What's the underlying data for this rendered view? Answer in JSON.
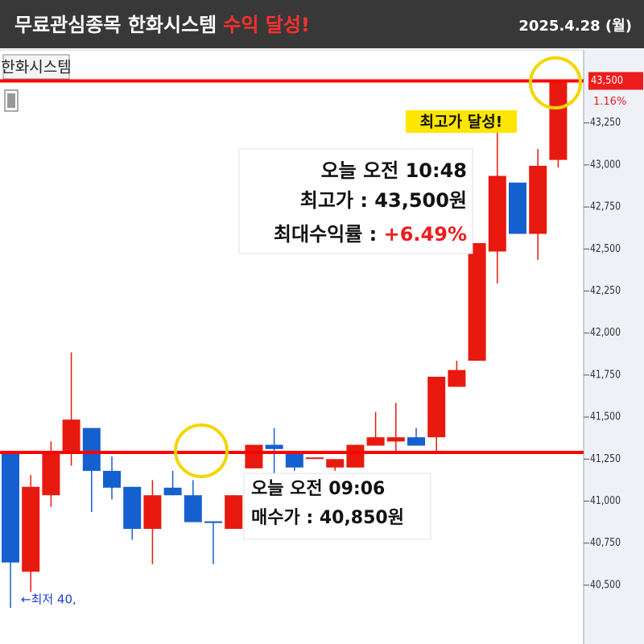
{
  "header": {
    "title": "무료관심종목 한화시스템",
    "highlight": "수익 달성!",
    "date": "2025.4.28 (월)"
  },
  "chart_data": {
    "type": "candlestick",
    "title": "한화시스템",
    "open": [
      41285,
      40580,
      41035,
      41285,
      41435,
      41180,
      41085,
      40835,
      41080,
      41035,
      40880,
      40835,
      41195,
      41335,
      41285,
      41260,
      41200,
      41200,
      41330,
      41355,
      41380,
      41380,
      41680,
      41835,
      42485,
      42895,
      42590,
      43030
    ],
    "high": [
      41285,
      41155,
      41355,
      41885,
      41435,
      41265,
      41085,
      41125,
      41180,
      41125,
      40880,
      41035,
      41335,
      41435,
      41285,
      41260,
      41250,
      41335,
      41530,
      41585,
      41435,
      41740,
      41835,
      42535,
      43215,
      42895,
      43095,
      43500
    ],
    "low": [
      40365,
      40460,
      40965,
      41210,
      40935,
      41010,
      40770,
      40625,
      41035,
      40875,
      40625,
      40835,
      41195,
      41155,
      41180,
      41260,
      41180,
      41200,
      41330,
      41285,
      41330,
      41285,
      41680,
      41835,
      42295,
      42590,
      42435,
      42985
    ],
    "close": [
      40635,
      41085,
      41285,
      41485,
      41180,
      41080,
      40835,
      41035,
      41035,
      40875,
      40870,
      41035,
      41335,
      41310,
      41200,
      41260,
      41250,
      41335,
      41380,
      41380,
      41330,
      41740,
      41780,
      42535,
      42935,
      42590,
      42995,
      43500
    ],
    "up_color": "#e8190e",
    "down_color": "#1560cf",
    "ylim": [
      40150,
      43670
    ],
    "yticks": [
      {
        "value": 40500,
        "label": "40,500"
      },
      {
        "value": 40750,
        "label": "40,750"
      },
      {
        "value": 41000,
        "label": "41,000"
      },
      {
        "value": 41250,
        "label": "41,250"
      },
      {
        "value": 41500,
        "label": "41,500"
      },
      {
        "value": 41750,
        "label": "41,750"
      },
      {
        "value": 42000,
        "label": "42,000"
      },
      {
        "value": 42250,
        "label": "42,250"
      },
      {
        "value": 42500,
        "label": "42,500"
      },
      {
        "value": 42750,
        "label": "42,750"
      },
      {
        "value": 43000,
        "label": "43,000"
      },
      {
        "value": 43250,
        "label": "43,250"
      }
    ],
    "reference_lines": [
      {
        "value": 43500,
        "color": "#ff0000"
      },
      {
        "value": 41290,
        "color": "#ff0000"
      }
    ],
    "last_price": {
      "value": 43500,
      "label": "43,500"
    },
    "change_label": "1.16%",
    "low_marker_label": "←최저 40,"
  },
  "annotations": {
    "high": {
      "time": "오늘 오전 10:48",
      "price": "최고가 : 43,500원",
      "return_label": "최대수익률 : ",
      "return_value": "+6.49%"
    },
    "buy": {
      "time": "오늘 오전 09:06",
      "price": "매수가 : 40,850원"
    },
    "badge": "최고가 달성!"
  }
}
